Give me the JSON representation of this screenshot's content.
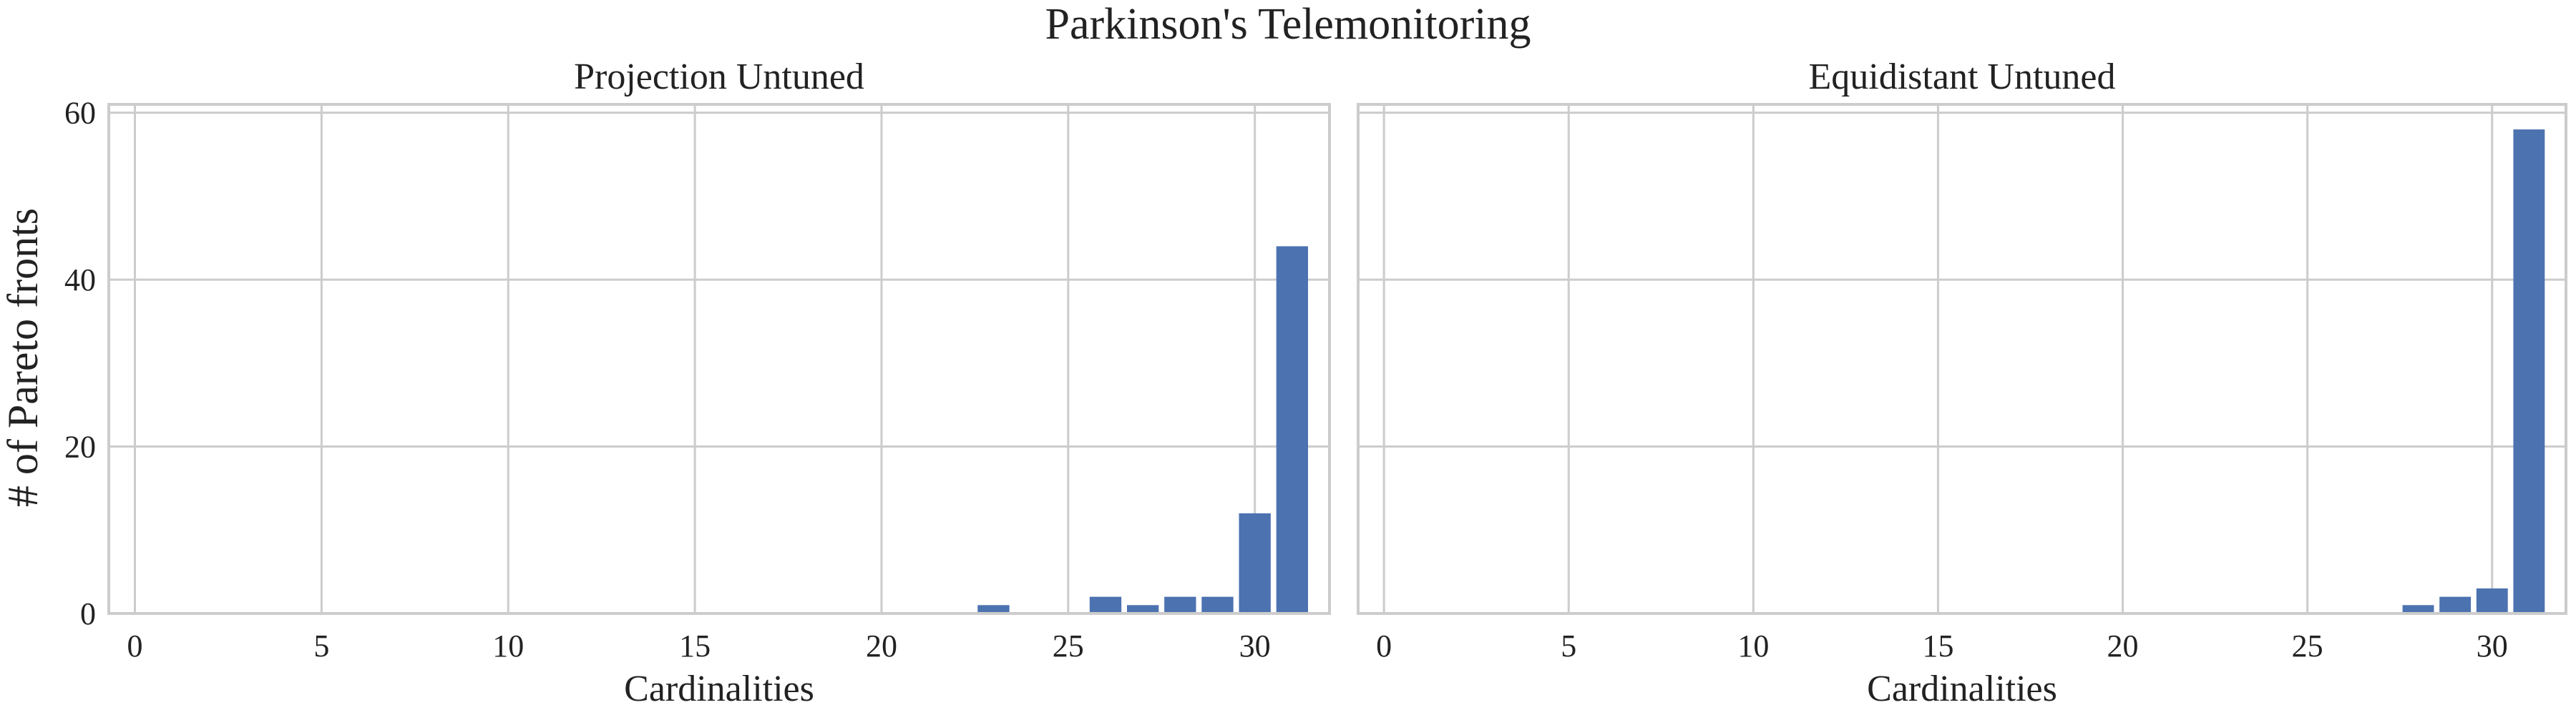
{
  "chart_data": {
    "type": "bar",
    "title": "Parkinson's Telemonitoring",
    "ylabel": "# of Pareto fronts",
    "ylim": [
      0,
      61
    ],
    "yticks": [
      0,
      20,
      40,
      60
    ],
    "grid": true,
    "sharey": true,
    "bar_color": "#4c72b0",
    "grid_color": "#cccccc",
    "panels": [
      {
        "title": "Projection Untuned",
        "xlabel": "Cardinalities",
        "xlim": [
          -0.7,
          32.0
        ],
        "xticks": [
          0,
          5,
          10,
          15,
          20,
          25,
          30
        ],
        "x": [
          23,
          26,
          27,
          28,
          29,
          30,
          31
        ],
        "values": [
          1,
          2,
          1,
          2,
          2,
          12,
          44
        ]
      },
      {
        "title": "Equidistant Untuned",
        "xlabel": "Cardinalities",
        "xlim": [
          -0.7,
          32.0
        ],
        "xticks": [
          0,
          5,
          10,
          15,
          20,
          25,
          30
        ],
        "x": [
          28,
          29,
          30,
          31
        ],
        "values": [
          1,
          2,
          3,
          58
        ]
      }
    ]
  }
}
